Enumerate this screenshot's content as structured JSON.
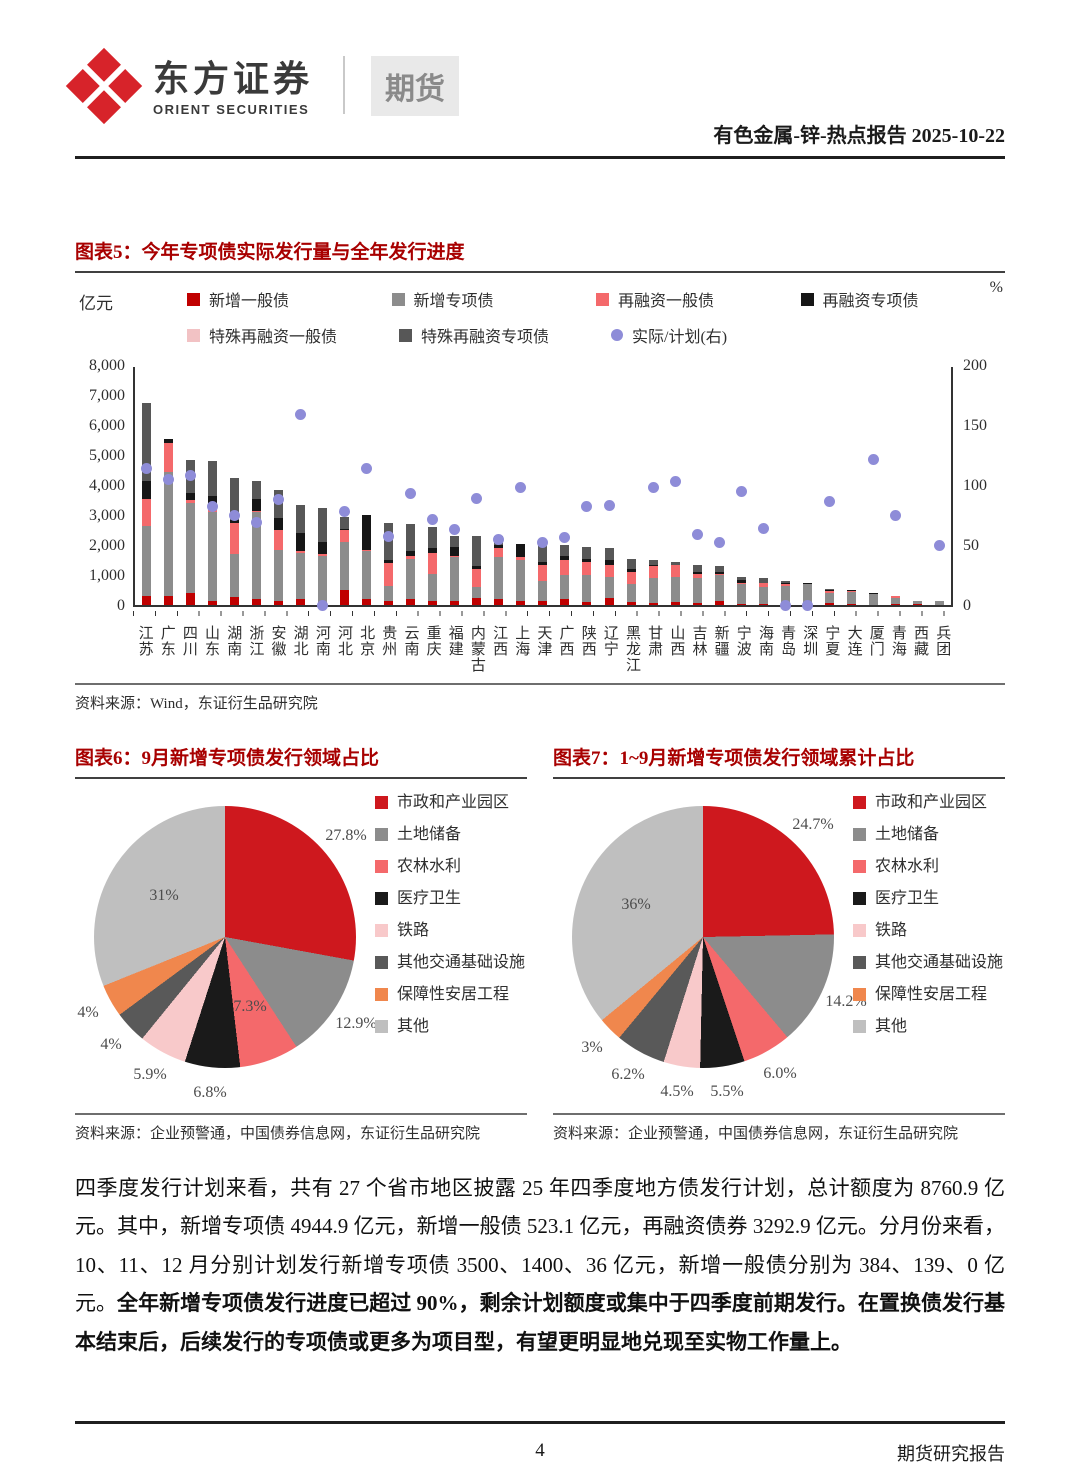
{
  "header": {
    "brand_cn": "东方证券",
    "brand_en": "ORIENT SECURITIES",
    "division": "期货",
    "report_line": "有色金属-锌-热点报告 2025-10-22"
  },
  "fig5": {
    "title": "图表5：今年专项债实际发行量与全年发行进度",
    "source": "资料来源：Wind，东证衍生品研究院"
  },
  "fig6": {
    "title": "图表6：9月新增专项债发行领域占比",
    "source": "资料来源：企业预警通，中国债券信息网，东证衍生品研究院"
  },
  "fig7": {
    "title": "图表7：1~9月新增专项债发行领域累计占比",
    "source": "资料来源：企业预警通，中国债券信息网，东证衍生品研究院"
  },
  "body": {
    "normal": "四季度发行计划来看，共有 27 个省市地区披露 25 年四季度地方债发行计划，总计额度为 8760.9 亿元。其中，新增专项债 4944.9 亿元，新增一般债 523.1 亿元，再融资债券 3292.9 亿元。分月份来看，10、11、12 月分别计划发行新增专项债 3500、1400、36 亿元，新增一般债分别为 384、139、0 亿元。",
    "bold": "全年新增专项债发行进度已超过 90%，剩余计划额度或集中于四季度前期发行。在置换债发行基本结束后，后续发行的专项债或更多为项目型，有望更明显地兑现至实物工作量上。"
  },
  "footer": {
    "page_number": "4",
    "report_type": "期货研究报告"
  },
  "chart_data": [
    {
      "id": "fig5",
      "type": "bar",
      "subtype": "stacked-bar-with-dots",
      "title": "今年专项债实际发行量与全年发行进度",
      "unit_left": "亿元",
      "unit_right": "%",
      "ylim_left": [
        0,
        8000
      ],
      "yticks_left": [
        "8,000",
        "7,000",
        "6,000",
        "5,000",
        "4,000",
        "3,000",
        "2,000",
        "1,000",
        "0"
      ],
      "ylim_right": [
        0,
        200
      ],
      "yticks_right": [
        "200",
        "150",
        "100",
        "50",
        "0"
      ],
      "grid": false,
      "legend_position": "top",
      "categories": [
        "江苏",
        "广东",
        "四川",
        "山东",
        "湖南",
        "浙江",
        "安徽",
        "湖北",
        "河南",
        "河北",
        "北京",
        "贵州",
        "云南",
        "重庆",
        "福建",
        "内蒙古",
        "江西",
        "上海",
        "天津",
        "广西",
        "陕西",
        "辽宁",
        "黑龙江",
        "甘肃",
        "山西",
        "吉林",
        "新疆",
        "宁波",
        "海南",
        "青岛",
        "深圳",
        "宁夏",
        "大连",
        "厦门",
        "青海",
        "西藏",
        "兵团"
      ],
      "series": [
        {
          "name": "新增一般债",
          "color": "#c00000",
          "values": [
            300,
            300,
            400,
            150,
            280,
            200,
            150,
            200,
            100,
            500,
            200,
            150,
            200,
            150,
            150,
            250,
            200,
            150,
            150,
            200,
            100,
            250,
            100,
            80,
            100,
            80,
            150,
            50,
            50,
            50,
            0,
            60,
            50,
            0,
            40,
            30,
            0
          ]
        },
        {
          "name": "新增专项债",
          "color": "#8c8c8c",
          "values": [
            2350,
            4150,
            3000,
            2950,
            1420,
            2900,
            1700,
            1550,
            1550,
            1600,
            1600,
            500,
            1350,
            900,
            1450,
            350,
            1400,
            1350,
            650,
            800,
            900,
            700,
            600,
            820,
            850,
            820,
            850,
            650,
            550,
            600,
            700,
            340,
            400,
            380,
            210,
            90,
            130
          ]
        },
        {
          "name": "再融资一般债",
          "color": "#f4696b",
          "values": [
            900,
            950,
            100,
            200,
            1050,
            50,
            650,
            50,
            50,
            400,
            50,
            750,
            100,
            700,
            50,
            600,
            300,
            100,
            550,
            500,
            450,
            400,
            400,
            400,
            400,
            150,
            50,
            50,
            150,
            50,
            0,
            80,
            30,
            0,
            50,
            20,
            0
          ]
        },
        {
          "name": "再融资专项债",
          "color": "#161616",
          "values": [
            600,
            150,
            250,
            350,
            100,
            400,
            400,
            600,
            400,
            50,
            1150,
            100,
            150,
            150,
            300,
            100,
            100,
            450,
            100,
            150,
            100,
            150,
            100,
            50,
            0,
            50,
            50,
            100,
            0,
            50,
            50,
            20,
            20,
            20,
            0,
            10,
            20
          ]
        },
        {
          "name": "特殊再融资一般债",
          "color": "#f2c2c4",
          "values": [
            0,
            0,
            0,
            0,
            0,
            0,
            0,
            0,
            0,
            0,
            0,
            0,
            0,
            0,
            0,
            0,
            0,
            0,
            0,
            0,
            0,
            0,
            0,
            0,
            0,
            0,
            0,
            0,
            0,
            0,
            0,
            0,
            0,
            0,
            0,
            0,
            0
          ]
        },
        {
          "name": "特殊再融资专项债",
          "color": "#575757",
          "values": [
            2600,
            0,
            1100,
            1150,
            1400,
            600,
            950,
            950,
            1150,
            400,
            0,
            1250,
            900,
            700,
            350,
            1000,
            300,
            0,
            600,
            350,
            400,
            400,
            350,
            150,
            100,
            250,
            200,
            100,
            150,
            50,
            0,
            50,
            0,
            0,
            0,
            0,
            0
          ]
        }
      ],
      "dot_series": {
        "name": "实际/计划(右)",
        "color": "#8e8cd8",
        "axis": "right",
        "values": [
          114,
          105,
          108,
          82,
          75,
          69,
          88,
          159,
          0,
          78,
          114,
          57,
          93,
          71,
          63,
          89,
          55,
          98,
          52,
          56,
          82,
          83,
          null,
          98,
          103,
          59,
          52,
          95,
          64,
          0,
          0,
          86,
          null,
          121,
          75,
          null,
          50
        ]
      }
    },
    {
      "id": "fig6",
      "type": "pie",
      "title": "9月新增专项债发行领域占比",
      "legend_position": "right",
      "slices": [
        {
          "name": "市政和产业园区",
          "value": 27.8,
          "label": "27.8%",
          "color": "#ce181e",
          "inside": false
        },
        {
          "name": "土地储备",
          "value": 12.9,
          "label": "12.9%",
          "color": "#8c8c8c",
          "inside": false
        },
        {
          "name": "农林水利",
          "value": 7.3,
          "label": "7.3%",
          "color": "#f4696b",
          "inside": true
        },
        {
          "name": "医疗卫生",
          "value": 6.8,
          "label": "6.8%",
          "color": "#1a1a1a",
          "inside": false
        },
        {
          "name": "铁路",
          "value": 5.9,
          "label": "5.9%",
          "color": "#f8c9ca",
          "inside": false
        },
        {
          "name": "其他交通基础设施",
          "value": 4,
          "label": "4%",
          "color": "#595959",
          "inside": false
        },
        {
          "name": "保障性安居工程",
          "value": 4,
          "label": "4%",
          "color": "#f0874d",
          "inside": false
        },
        {
          "name": "其他",
          "value": 31,
          "label": "31%",
          "color": "#bfbfbf",
          "inside": true
        }
      ]
    },
    {
      "id": "fig7",
      "type": "pie",
      "title": "1~9月新增专项债发行领域累计占比",
      "legend_position": "right",
      "slices": [
        {
          "name": "市政和产业园区",
          "value": 24.7,
          "label": "24.7%",
          "color": "#ce181e",
          "inside": false
        },
        {
          "name": "土地储备",
          "value": 14.2,
          "label": "14.2%",
          "color": "#8c8c8c",
          "inside": false
        },
        {
          "name": "农林水利",
          "value": 6.0,
          "label": "6.0%",
          "color": "#f4696b",
          "inside": false
        },
        {
          "name": "医疗卫生",
          "value": 5.5,
          "label": "5.5%",
          "color": "#1a1a1a",
          "inside": false
        },
        {
          "name": "铁路",
          "value": 4.5,
          "label": "4.5%",
          "color": "#f8c9ca",
          "inside": false
        },
        {
          "name": "其他交通基础设施",
          "value": 6.2,
          "label": "6.2%",
          "color": "#595959",
          "inside": false
        },
        {
          "name": "保障性安居工程",
          "value": 3,
          "label": "3%",
          "color": "#f0874d",
          "inside": false
        },
        {
          "name": "其他",
          "value": 36,
          "label": "36%",
          "color": "#bfbfbf",
          "inside": true
        }
      ]
    }
  ]
}
